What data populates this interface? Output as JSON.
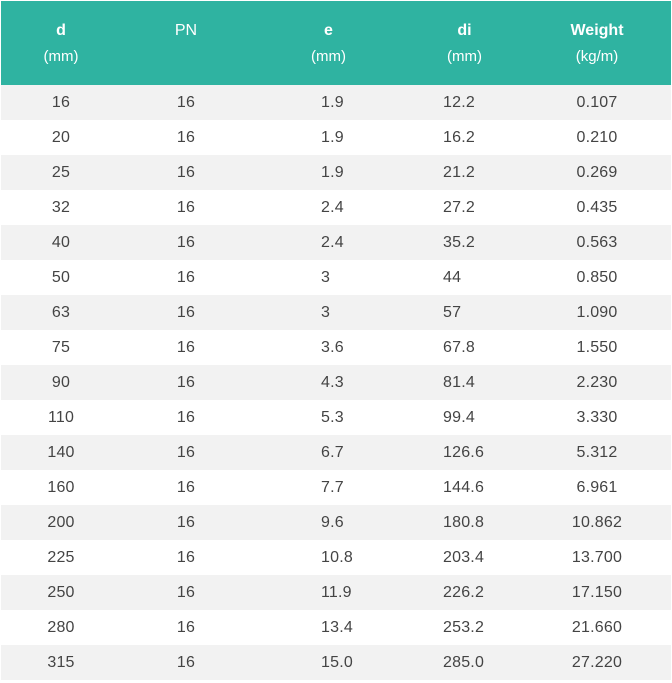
{
  "table": {
    "headers": [
      {
        "title": "d",
        "unit": "(mm)"
      },
      {
        "title": "PN",
        "unit": ""
      },
      {
        "title": "e",
        "unit": "(mm)"
      },
      {
        "title": "di",
        "unit": "(mm)"
      },
      {
        "title": "Weight",
        "unit": "(kg/m)"
      }
    ],
    "rows": [
      [
        "16",
        "16",
        "1.9",
        "12.2",
        "0.107"
      ],
      [
        "20",
        "16",
        "1.9",
        "16.2",
        "0.210"
      ],
      [
        "25",
        "16",
        "1.9",
        "21.2",
        "0.269"
      ],
      [
        "32",
        "16",
        "2.4",
        "27.2",
        "0.435"
      ],
      [
        "40",
        "16",
        "2.4",
        "35.2",
        "0.563"
      ],
      [
        "50",
        "16",
        "3",
        "44",
        "0.850"
      ],
      [
        "63",
        "16",
        "3",
        "57",
        "1.090"
      ],
      [
        "75",
        "16",
        "3.6",
        "67.8",
        "1.550"
      ],
      [
        "90",
        "16",
        "4.3",
        "81.4",
        "2.230"
      ],
      [
        "110",
        "16",
        "5.3",
        "99.4",
        "3.330"
      ],
      [
        "140",
        "16",
        "6.7",
        "126.6",
        "5.312"
      ],
      [
        "160",
        "16",
        "7.7",
        "144.6",
        "6.961"
      ],
      [
        "200",
        "16",
        "9.6",
        "180.8",
        "10.862"
      ],
      [
        "225",
        "16",
        "10.8",
        "203.4",
        "13.700"
      ],
      [
        "250",
        "16",
        "11.9",
        "226.2",
        "17.150"
      ],
      [
        "280",
        "16",
        "13.4",
        "253.2",
        "21.660"
      ],
      [
        "315",
        "16",
        "15.0",
        "285.0",
        "27.220"
      ]
    ],
    "colors": {
      "header_bg": "#2fb3a1",
      "header_text": "#ffffff",
      "stripe": "#f2f2f2",
      "body_text": "#444444"
    }
  }
}
